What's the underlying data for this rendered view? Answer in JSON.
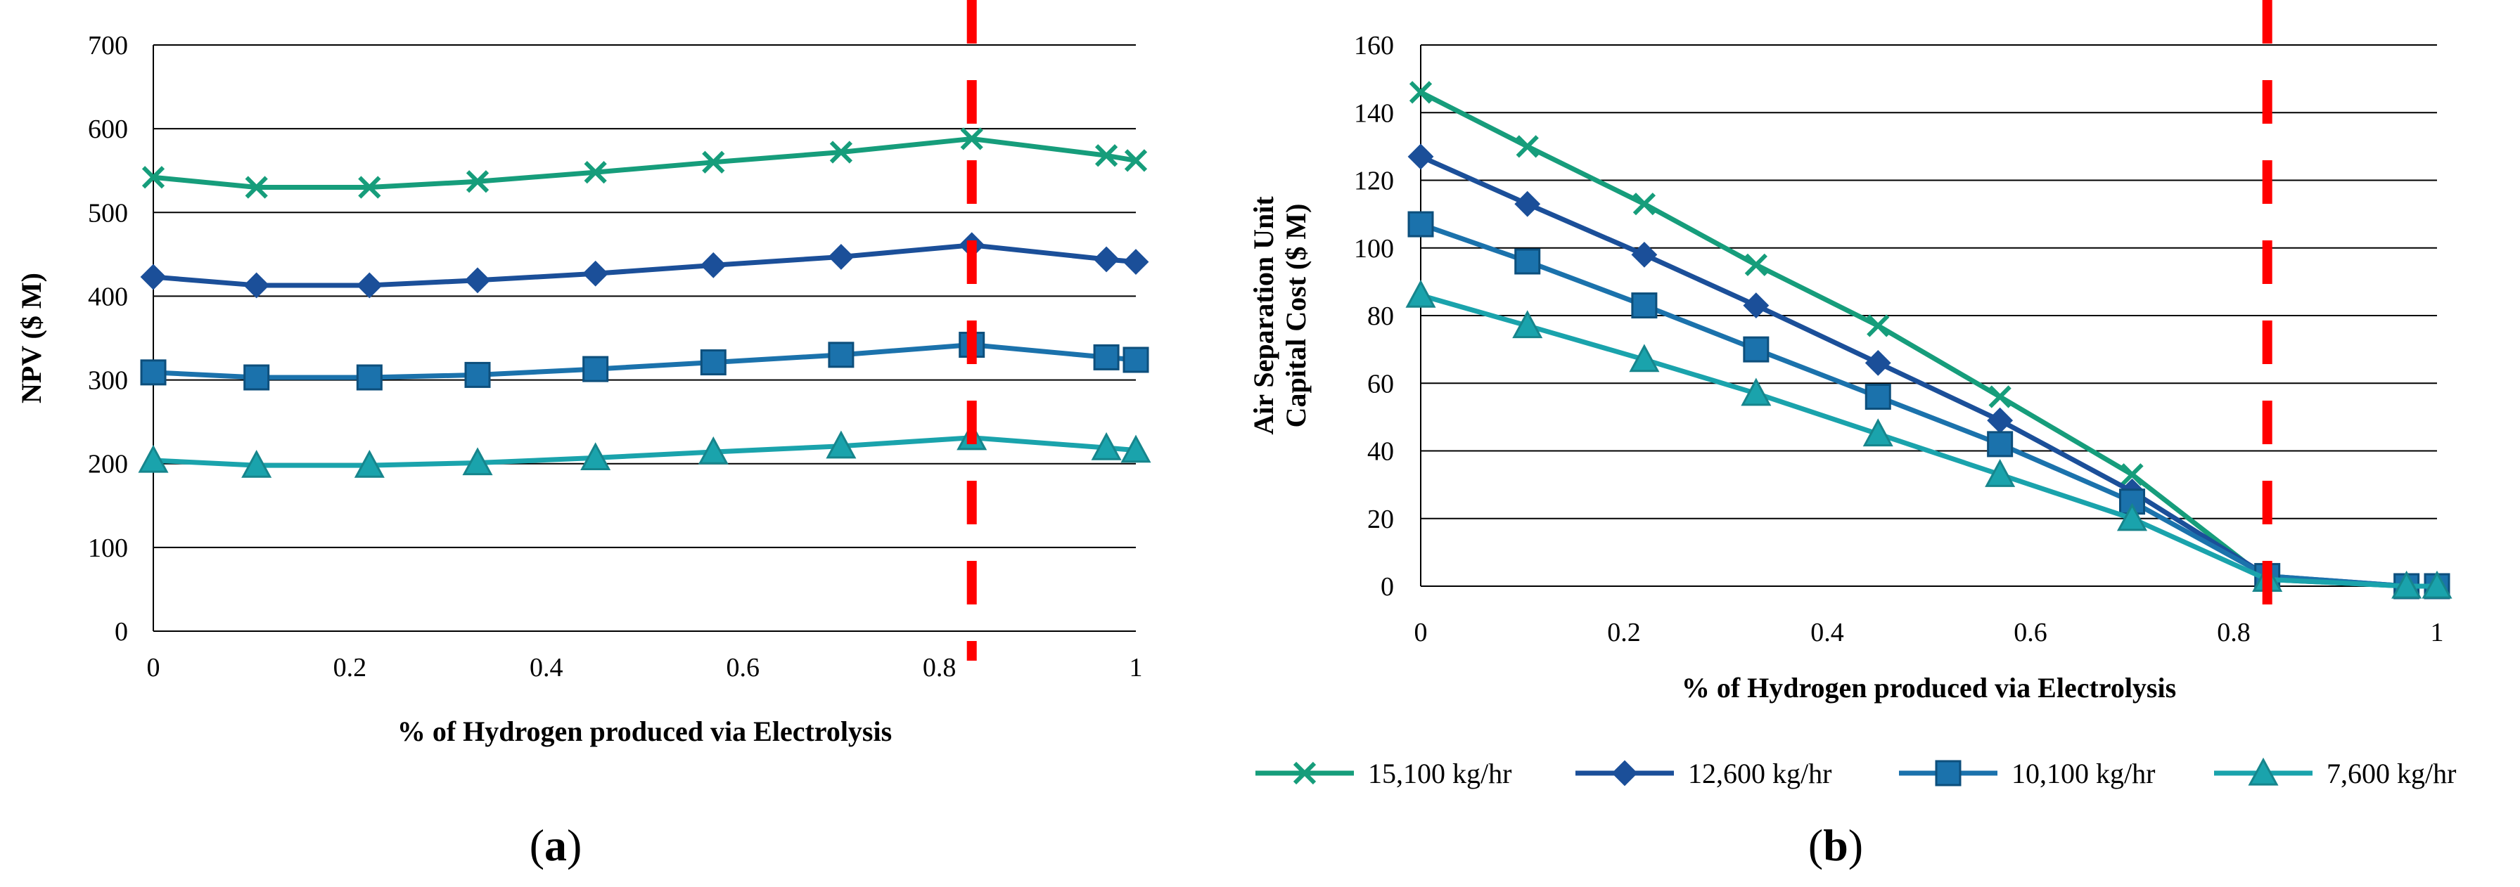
{
  "colors": {
    "s15100": "#169d7b",
    "s12600": "#1b4f99",
    "s10100": "#1b72ac",
    "s7600": "#1aa3ac",
    "marker_line": "#ff0000",
    "grid": "#000000"
  },
  "legend": [
    {
      "label": "15,100 kg/hr",
      "color_key": "s15100",
      "marker": "x"
    },
    {
      "label": "12,600 kg/hr",
      "color_key": "s12600",
      "marker": "diamond"
    },
    {
      "label": "10,100 kg/hr",
      "color_key": "s10100",
      "marker": "square"
    },
    {
      "label": "7,600 kg/hr",
      "color_key": "s7600",
      "marker": "triangle"
    }
  ],
  "chart_data": [
    {
      "id": "a",
      "panel_label": "(a)",
      "panel_letter": "a",
      "type": "line",
      "title": "",
      "xlabel": "% of Hydrogen produced via Electrolysis",
      "ylabel": "NPV ($ M)",
      "xlim": [
        0,
        1
      ],
      "ylim": [
        0,
        700
      ],
      "xticks": [
        0,
        0.2,
        0.4,
        0.6,
        0.8,
        1
      ],
      "xtick_labels": [
        "0",
        "0.2",
        "0.4",
        "0.6",
        "0.8",
        "1"
      ],
      "yticks": [
        0,
        100,
        200,
        300,
        400,
        500,
        600,
        700
      ],
      "ytick_labels": [
        "0",
        "100",
        "200",
        "300",
        "400",
        "500",
        "600",
        "700"
      ],
      "grid": "horizontal",
      "vline_x": 0.833,
      "x": [
        0,
        0.105,
        0.22,
        0.33,
        0.45,
        0.57,
        0.7,
        0.833,
        0.97,
        1.0
      ],
      "series": [
        {
          "name": "15,100 kg/hr",
          "color_key": "s15100",
          "marker": "x",
          "values": [
            542,
            530,
            530,
            537,
            548,
            560,
            572,
            588,
            568,
            562
          ]
        },
        {
          "name": "12,600 kg/hr",
          "color_key": "s12600",
          "marker": "diamond",
          "values": [
            423,
            413,
            413,
            419,
            427,
            437,
            447,
            461,
            444,
            441
          ]
        },
        {
          "name": "10,100 kg/hr",
          "color_key": "s10100",
          "marker": "square",
          "values": [
            309,
            303,
            303,
            306,
            313,
            321,
            330,
            342,
            327,
            324
          ]
        },
        {
          "name": "7,600 kg/hr",
          "color_key": "s7600",
          "marker": "triangle",
          "values": [
            204,
            198,
            198,
            201,
            207,
            214,
            221,
            231,
            219,
            216
          ]
        }
      ]
    },
    {
      "id": "b",
      "panel_label": "(b)",
      "panel_letter": "b",
      "type": "line",
      "title": "",
      "xlabel": "% of Hydrogen produced via Electrolysis",
      "ylabel_lines": [
        "Air Separation Unit",
        "Capital Cost ($ M)"
      ],
      "xlim": [
        0,
        1
      ],
      "ylim": [
        0,
        160
      ],
      "xticks": [
        0,
        0.2,
        0.4,
        0.6,
        0.8,
        1
      ],
      "xtick_labels": [
        "0",
        "0.2",
        "0.4",
        "0.6",
        "0.8",
        "1"
      ],
      "yticks": [
        0,
        20,
        40,
        60,
        80,
        100,
        120,
        140,
        160
      ],
      "ytick_labels": [
        "0",
        "20",
        "40",
        "60",
        "80",
        "100",
        "120",
        "140",
        "160"
      ],
      "grid": "horizontal",
      "vline_x": 0.833,
      "x": [
        0,
        0.105,
        0.22,
        0.33,
        0.45,
        0.57,
        0.7,
        0.833,
        0.97,
        1.0
      ],
      "series": [
        {
          "name": "15,100 kg/hr",
          "color_key": "s15100",
          "marker": "x",
          "values": [
            146,
            130,
            113,
            95,
            77,
            56,
            33,
            2,
            0,
            0
          ]
        },
        {
          "name": "12,600 kg/hr",
          "color_key": "s12600",
          "marker": "diamond",
          "values": [
            127,
            113,
            98,
            83,
            66,
            49,
            28,
            3,
            0,
            0
          ]
        },
        {
          "name": "10,100 kg/hr",
          "color_key": "s10100",
          "marker": "square",
          "values": [
            107,
            96,
            83,
            70,
            56,
            42,
            25,
            3,
            0,
            0
          ]
        },
        {
          "name": "7,600 kg/hr",
          "color_key": "s7600",
          "marker": "triangle",
          "values": [
            86,
            77,
            67,
            57,
            45,
            33,
            20,
            2,
            0,
            0
          ]
        }
      ]
    }
  ]
}
